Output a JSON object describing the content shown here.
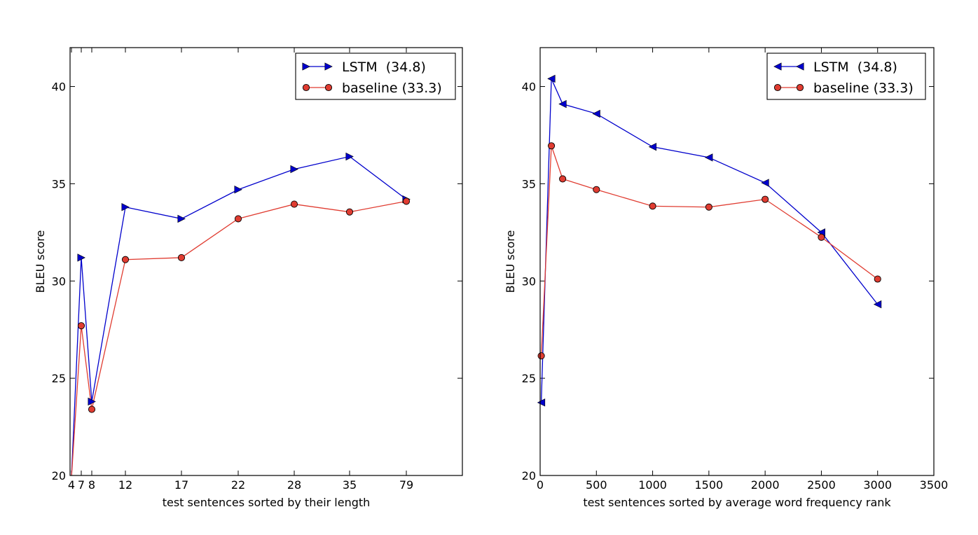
{
  "chart_data": [
    {
      "type": "line",
      "xlabel": "test sentences sorted by their length",
      "ylabel": "BLEU score",
      "x_ticks": [
        "4",
        "7",
        "8",
        "12",
        "17",
        "22",
        "28",
        "35",
        "79"
      ],
      "y_ticks": [
        "20",
        "25",
        "30",
        "35",
        "40"
      ],
      "ylim": [
        20,
        42
      ],
      "grid": false,
      "legend_position": "top-right",
      "series": [
        {
          "name": "LSTM  (34.8)",
          "marker": "triangle-right",
          "color": "#0000cc",
          "points": [
            [
              "4",
              19.9
            ],
            [
              "7",
              31.2
            ],
            [
              "8",
              23.8
            ],
            [
              "12",
              33.8
            ],
            [
              "17",
              33.2
            ],
            [
              "22",
              34.7
            ],
            [
              "28",
              35.75
            ],
            [
              "35",
              36.4
            ],
            [
              "79",
              34.2
            ]
          ]
        },
        {
          "name": "baseline (33.3)",
          "marker": "circle",
          "color": "#e03c31",
          "points": [
            [
              "4",
              19.9
            ],
            [
              "7",
              27.7
            ],
            [
              "8",
              23.4
            ],
            [
              "12",
              31.1
            ],
            [
              "17",
              31.2
            ],
            [
              "22",
              33.2
            ],
            [
              "28",
              33.95
            ],
            [
              "35",
              33.55
            ],
            [
              "79",
              34.1
            ]
          ]
        }
      ]
    },
    {
      "type": "line",
      "xlabel": "test sentences sorted by average word frequency rank",
      "ylabel": "BLEU score",
      "x_ticks": [
        "0",
        "500",
        "1000",
        "1500",
        "2000",
        "2500",
        "3000",
        "3500"
      ],
      "y_ticks": [
        "20",
        "25",
        "30",
        "35",
        "40"
      ],
      "xlim": [
        0,
        3500
      ],
      "ylim": [
        20,
        42
      ],
      "grid": false,
      "legend_position": "top-right",
      "series": [
        {
          "name": "LSTM  (34.8)",
          "marker": "triangle-left",
          "color": "#0000cc",
          "x": [
            10,
            100,
            200,
            500,
            1000,
            1500,
            2000,
            2500,
            3000
          ],
          "y": [
            23.75,
            40.4,
            39.1,
            38.6,
            36.9,
            36.35,
            35.05,
            32.5,
            28.8
          ]
        },
        {
          "name": "baseline (33.3)",
          "marker": "circle",
          "color": "#e03c31",
          "x": [
            10,
            100,
            200,
            500,
            1000,
            1500,
            2000,
            2500,
            3000
          ],
          "y": [
            26.15,
            36.95,
            35.25,
            34.7,
            33.85,
            33.8,
            34.2,
            32.25,
            30.1
          ]
        }
      ]
    }
  ]
}
